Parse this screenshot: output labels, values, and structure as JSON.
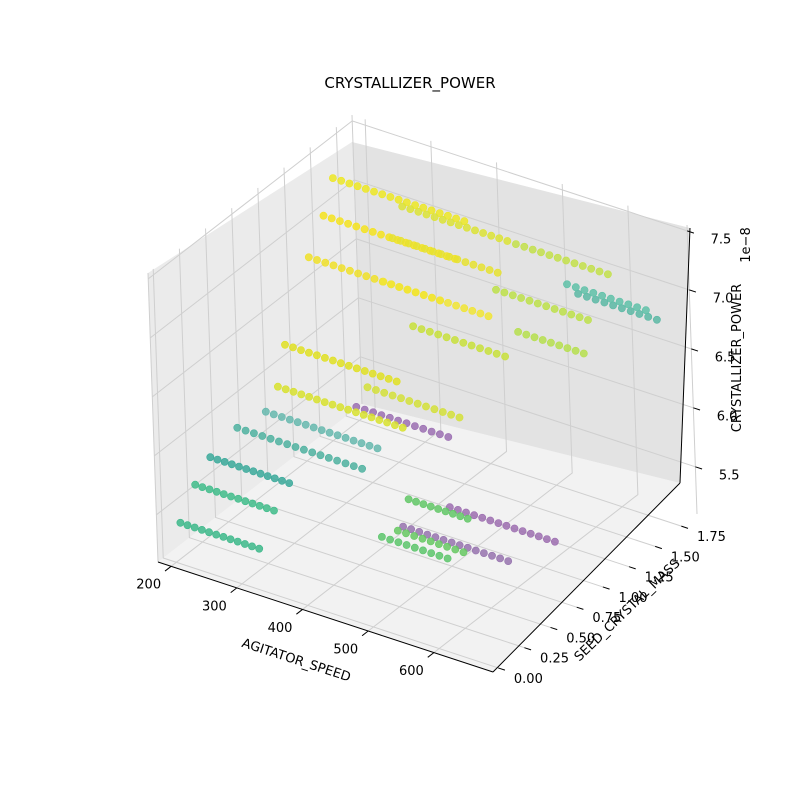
{
  "chart_data": {
    "type": "scatter",
    "projection": "3d",
    "title": "CRYSTALLIZER_POWER",
    "xlabel": "AGITATOR_SPEED",
    "ylabel": "SEED_CRYSTAL_MASS",
    "zlabel": "CRYSTALLIZER_POWER",
    "z_offset_label": "1e−8",
    "xlim": [
      180,
      690
    ],
    "ylim": [
      -0.05,
      1.9
    ],
    "zlim": [
      5.1,
      7.55
    ],
    "xticks": [
      200,
      300,
      400,
      500,
      600
    ],
    "yticks": [
      "0.00",
      "0.25",
      "0.50",
      "0.75",
      "1.00",
      "1.25",
      "1.50",
      "1.75"
    ],
    "zticks": [
      "5.5",
      "6.0",
      "6.5",
      "7.0",
      "7.5"
    ],
    "grid": true,
    "colormap": "viridis",
    "colors": {
      "pane_left": "#ebebeb",
      "pane_right": "#e3e3e3",
      "pane_floor": "#f2f2f2",
      "grid": "#cfcfcf"
    },
    "groups": [
      {
        "y": 0.05,
        "z": 5.4,
        "x_start": 200,
        "x_end": 320,
        "n": 12,
        "color": "#3cb88a"
      },
      {
        "y": 0.2,
        "z": 5.62,
        "x_start": 200,
        "x_end": 320,
        "n": 12,
        "color": "#3fbc8a"
      },
      {
        "y": 0.35,
        "z": 5.75,
        "x_start": 200,
        "x_end": 320,
        "n": 12,
        "color": "#3aa99a"
      },
      {
        "y": 0.55,
        "z": 5.88,
        "x_start": 210,
        "x_end": 400,
        "n": 16,
        "color": "#4fb2a0"
      },
      {
        "y": 0.7,
        "z": 5.95,
        "x_start": 230,
        "x_end": 400,
        "n": 15,
        "color": "#66b8ae"
      },
      {
        "y": 0.82,
        "z": 6.08,
        "x_start": 230,
        "x_end": 420,
        "n": 17,
        "color": "#d8e22e"
      },
      {
        "y": 0.9,
        "z": 6.38,
        "x_start": 230,
        "x_end": 400,
        "n": 15,
        "color": "#e0e022"
      },
      {
        "y": 1.0,
        "z": 5.95,
        "x_start": 320,
        "x_end": 460,
        "n": 12,
        "color": "#9b6fb2"
      },
      {
        "y": 1.05,
        "z": 6.1,
        "x_start": 330,
        "x_end": 470,
        "n": 12,
        "color": "#d4e03a"
      },
      {
        "y": 1.15,
        "z": 6.95,
        "x_start": 230,
        "x_end": 430,
        "n": 17,
        "color": "#f0e129"
      },
      {
        "y": 1.3,
        "z": 7.2,
        "x_start": 230,
        "x_end": 430,
        "n": 17,
        "color": "#f5e31f"
      },
      {
        "y": 1.4,
        "z": 7.45,
        "x_start": 230,
        "x_end": 430,
        "n": 17,
        "color": "#ede724"
      },
      {
        "y": 1.05,
        "z": 7.05,
        "x_start": 360,
        "x_end": 520,
        "n": 14,
        "color": "#f1e534"
      },
      {
        "y": 1.15,
        "z": 7.35,
        "x_start": 360,
        "x_end": 520,
        "n": 14,
        "color": "#e6e230"
      },
      {
        "y": 1.25,
        "z": 7.55,
        "x_start": 360,
        "x_end": 520,
        "n": 14,
        "color": "#dce336"
      },
      {
        "y": 0.95,
        "z": 6.85,
        "x_start": 420,
        "x_end": 560,
        "n": 12,
        "color": "#c8e03b"
      },
      {
        "y": 1.25,
        "z": 7.1,
        "x_start": 500,
        "x_end": 640,
        "n": 12,
        "color": "#bde14a"
      },
      {
        "y": 1.45,
        "z": 7.35,
        "x_start": 500,
        "x_end": 640,
        "n": 12,
        "color": "#c3e04a"
      },
      {
        "y": 1.2,
        "z": 6.85,
        "x_start": 540,
        "x_end": 640,
        "n": 9,
        "color": "#b6df4d"
      },
      {
        "y": 1.55,
        "z": 7.05,
        "x_start": 560,
        "x_end": 680,
        "n": 10,
        "color": "#5fc1a8"
      },
      {
        "y": 1.65,
        "z": 6.9,
        "x_start": 560,
        "x_end": 680,
        "n": 10,
        "color": "#5cb8a5"
      },
      {
        "y": 0.35,
        "z": 5.55,
        "x_start": 460,
        "x_end": 560,
        "n": 9,
        "color": "#5cc56b"
      },
      {
        "y": 0.5,
        "z": 5.5,
        "x_start": 460,
        "x_end": 560,
        "n": 9,
        "color": "#66c862"
      },
      {
        "y": 0.55,
        "z": 5.75,
        "x_start": 470,
        "x_end": 560,
        "n": 9,
        "color": "#62c766"
      },
      {
        "y": 0.55,
        "z": 5.5,
        "x_start": 460,
        "x_end": 620,
        "n": 14,
        "color": "#9673ae"
      },
      {
        "y": 0.75,
        "z": 5.6,
        "x_start": 500,
        "x_end": 660,
        "n": 14,
        "color": "#9d6fb0"
      }
    ]
  }
}
